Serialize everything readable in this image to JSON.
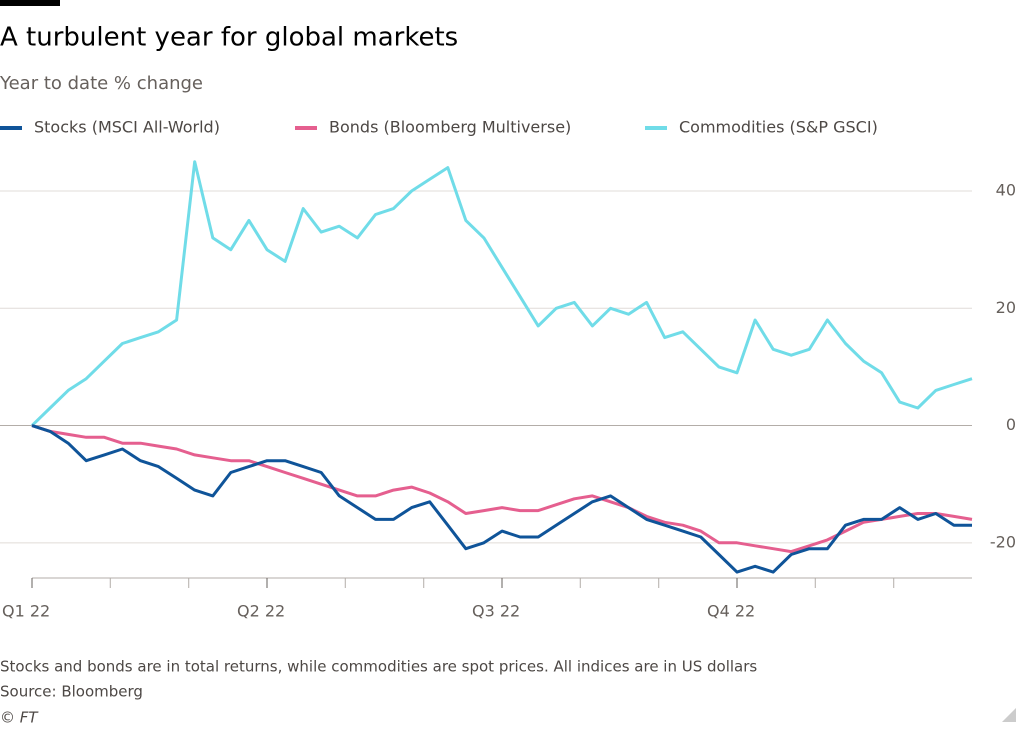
{
  "chart_data": {
    "type": "line",
    "title": "A turbulent year for global markets",
    "subtitle": "Year to date % change",
    "footnote": "Stocks and bonds are in total returns, while commodities are spot prices. All indices are in US dollars",
    "source": "Source: Bloomberg",
    "credit": "© FT",
    "x": [
      0,
      1,
      2,
      3,
      4,
      5,
      6,
      7,
      8,
      9,
      10,
      11,
      12,
      13,
      14,
      15,
      16,
      17,
      18,
      19,
      20,
      21,
      22,
      23,
      24,
      25,
      26,
      27,
      28,
      29,
      30,
      31,
      32,
      33,
      34,
      35,
      36,
      37,
      38,
      39,
      40,
      41,
      42,
      43,
      44,
      45,
      46,
      47,
      48,
      49,
      50,
      51,
      52
    ],
    "xlim": [
      0,
      52
    ],
    "xticks": [
      {
        "value": 0,
        "label": "Q1 22"
      },
      {
        "value": 13,
        "label": "Q2 22"
      },
      {
        "value": 26,
        "label": "Q3 22"
      },
      {
        "value": 39,
        "label": "Q4 22"
      }
    ],
    "xminorticks": [
      4.33,
      8.67,
      17.33,
      21.67,
      30.33,
      34.67,
      43.33,
      47.67
    ],
    "ylim": [
      -26,
      47
    ],
    "yticks": [
      -20,
      0,
      20,
      40
    ],
    "grid": true,
    "legend": "top",
    "series": [
      {
        "name": "Stocks (MSCI All-World)",
        "color": "#0f5499",
        "values": [
          0,
          -1,
          -3,
          -6,
          -5,
          -4,
          -6,
          -7,
          -9,
          -11,
          -12,
          -8,
          -7,
          -6,
          -6,
          -7,
          -8,
          -12,
          -14,
          -16,
          -16,
          -14,
          -13,
          -17,
          -21,
          -20,
          -18,
          -19,
          -19,
          -17,
          -15,
          -13,
          -12,
          -14,
          -16,
          -17,
          -18,
          -19,
          -22,
          -25,
          -24,
          -25,
          -22,
          -21,
          -21,
          -17,
          -16,
          -16,
          -14,
          -16,
          -15,
          -17,
          -17
        ]
      },
      {
        "name": "Bonds (Bloomberg Multiverse)",
        "color": "#e55f8f",
        "values": [
          0,
          -1,
          -1.5,
          -2,
          -2,
          -3,
          -3,
          -3.5,
          -4,
          -5,
          -5.5,
          -6,
          -6,
          -7,
          -8,
          -9,
          -10,
          -11,
          -12,
          -12,
          -11,
          -10.5,
          -11.5,
          -13,
          -15,
          -14.5,
          -14,
          -14.5,
          -14.5,
          -13.5,
          -12.5,
          -12,
          -13,
          -14,
          -15.5,
          -16.5,
          -17,
          -18,
          -20,
          -20,
          -20.5,
          -21,
          -21.5,
          -20.5,
          -19.5,
          -18,
          -16.5,
          -16,
          -15.5,
          -15,
          -15,
          -15.5,
          -16
        ]
      },
      {
        "name": "Commodities (S&P GSCI)",
        "color": "#70dce8",
        "values": [
          0,
          3,
          6,
          8,
          11,
          14,
          15,
          16,
          18,
          45,
          32,
          30,
          35,
          30,
          28,
          37,
          33,
          34,
          32,
          36,
          37,
          40,
          42,
          44,
          35,
          32,
          27,
          22,
          17,
          20,
          21,
          17,
          20,
          19,
          21,
          15,
          16,
          13,
          10,
          9,
          18,
          13,
          12,
          13,
          18,
          14,
          11,
          9,
          4,
          3,
          6,
          7,
          8
        ]
      }
    ]
  }
}
